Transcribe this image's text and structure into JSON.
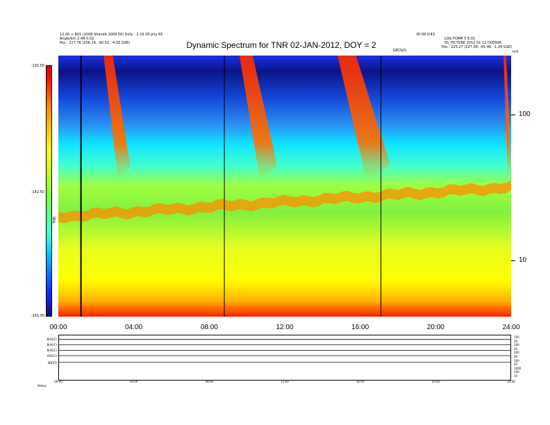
{
  "header": {
    "left_lines": [
      "12.00 + 801 (2009 Shavelt 2009 00) Doty - 2.16 00 phy 65",
      "Angle/km 2.48 0.02",
      "Pos : 227.76 (256.14, -92.52, -4.55 GSE)"
    ],
    "right_lines": [
      "Rf 09 0:43",
      "LOG FORM 5 8.01",
      "SS_PICTURE 2012 01 12 D0000A",
      "Pos : 225.27 (227.08, -81.46, -1.24 GSE)"
    ],
    "top_marker": "GEOS/S",
    "title": "Dynamic Spectrum for TNR 02-JAN-2012, DOY = 2"
  },
  "colorbar": {
    "tick_labels": [
      "-130.00",
      "-142.50",
      "-155.00"
    ],
    "side_label": "TNR",
    "colors": [
      "#0a1080",
      "#1030ff",
      "#00c8ff",
      "#40ffe0",
      "#80ff40",
      "#ffff00",
      "#ff9000",
      "#ff1000",
      "#d00000"
    ]
  },
  "chart_data": {
    "type": "heatmap",
    "title": "Dynamic Spectrum for TNR 02-JAN-2012, DOY = 2",
    "xlabel": "",
    "ylabel": "",
    "x_tick_labels": [
      "00:00",
      "04:00",
      "08:00",
      "12:00",
      "16:00",
      "20:00",
      "24:00"
    ],
    "x_range_hours": [
      0,
      24
    ],
    "y_scale": "log",
    "y_ticks": [
      10,
      100
    ],
    "y_tick_labels": [
      "10",
      "100"
    ],
    "y_range": [
      4.1,
      256
    ],
    "color_range": [
      -155.0,
      -130.0
    ],
    "vertical_lines_hours": [
      1.2,
      8.8,
      17.1
    ],
    "features": [
      {
        "name": "noise band",
        "start_hours": 0,
        "end_hours": 24,
        "y_value_start": 20,
        "y_value_end": 32
      },
      {
        "name": "type III burst",
        "start_hours": 2.4,
        "end_hours": 3.8
      },
      {
        "name": "type III burst",
        "start_hours": 9.6,
        "end_hours": 11.6
      },
      {
        "name": "type III burst",
        "start_hours": 14.8,
        "end_hours": 17.6
      },
      {
        "name": "type III burst",
        "start_hours": 23.6,
        "end_hours": 24
      }
    ]
  },
  "lower_panel": {
    "left_labels": [
      "B(AGC)",
      "B(AGC)",
      "B(AGC)",
      "A(AGC)",
      "dB(ST)"
    ],
    "right_labels": [
      "100",
      "20",
      "100",
      "20",
      "100",
      "20",
      "100",
      "20",
      "1000",
      "100",
      "10"
    ],
    "x_tick_labels": [
      "00:00",
      "04:00",
      "08:00",
      "12:00",
      "16:00",
      "20:00",
      "24:00"
    ],
    "footer_label": "Status"
  }
}
